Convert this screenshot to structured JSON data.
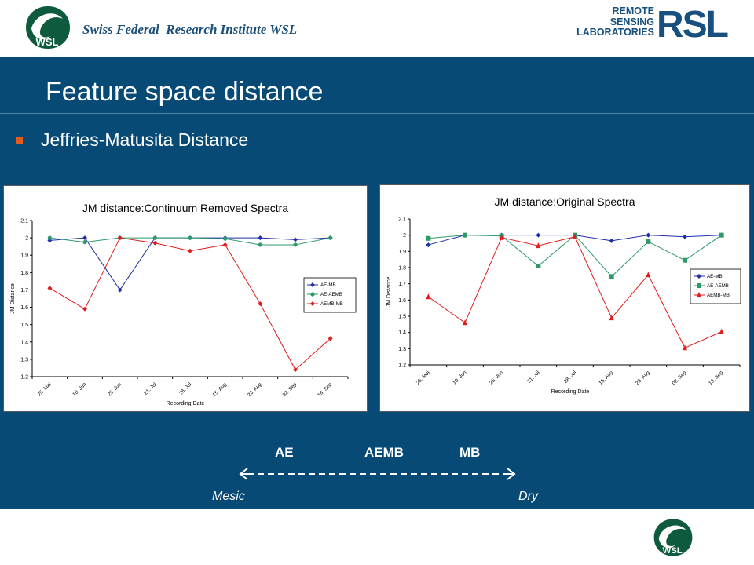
{
  "header": {
    "institute": "Swiss Federal  Research Institute WSL",
    "wsl_logo_text": "WSL",
    "rsl_words": [
      "REMOTE",
      "SENSING",
      "LABORATORIES"
    ],
    "rsl_big": "RSL"
  },
  "slide": {
    "title": "Feature space distance",
    "bullet": "Jeffries-Matusita Distance"
  },
  "scale": {
    "labels": [
      "AE",
      "AEMB",
      "MB"
    ],
    "left_end": "Mesic",
    "right_end": "Dry"
  },
  "colors": {
    "band": "#064a75",
    "bullet": "#e25a1c",
    "series_blue": "#1f2fa8",
    "series_green": "#2e9a6a",
    "series_red": "#e01c1c"
  },
  "chart_data": [
    {
      "type": "line",
      "title": "JM distance:Continuum Removed Spectra",
      "xlabel": "Recording Date",
      "ylabel": "JM Distance",
      "categories": [
        "25. Mai",
        "10. Jun",
        "25. Jun",
        "21. Jul",
        "28. Jul",
        "15. Aug",
        "23. Aug",
        "02. Sep",
        "18. Sep"
      ],
      "yticks": [
        "1.2",
        "1.3",
        "1.4",
        "1.5",
        "1.6",
        "1.7",
        "1.8",
        "1.9",
        "2",
        "2.1"
      ],
      "ylim": [
        1.2,
        2.1
      ],
      "grid": false,
      "legend": "right",
      "series": [
        {
          "name": "AE-MB",
          "marker": "diamond",
          "values": [
            1.985,
            2.0,
            1.7,
            2.0,
            2.0,
            2.0,
            2.0,
            1.99,
            2.0
          ]
        },
        {
          "name": "AE-AEMB",
          "marker": "circle",
          "values": [
            2.0,
            1.975,
            2.0,
            2.0,
            2.0,
            1.995,
            1.96,
            1.96,
            2.0
          ]
        },
        {
          "name": "AEMB-MB",
          "marker": "diamond",
          "values": [
            1.71,
            1.59,
            2.0,
            1.97,
            1.925,
            1.96,
            1.62,
            1.24,
            1.42
          ]
        }
      ]
    },
    {
      "type": "line",
      "title": "JM distance:Original Spectra",
      "xlabel": "Recording Date",
      "ylabel": "JM Distance",
      "categories": [
        "25. Mai",
        "10. Jun",
        "25. Jun",
        "21. Jul",
        "28. Jul",
        "15. Aug",
        "23. Aug",
        "02. Sep",
        "18. Sep"
      ],
      "yticks": [
        "1.2",
        "1.3",
        "1.4",
        "1.5",
        "1.6",
        "1.7",
        "1.8",
        "1.9",
        "2",
        "2.1"
      ],
      "ylim": [
        1.2,
        2.1
      ],
      "grid": false,
      "legend": "right",
      "series": [
        {
          "name": "AE-MB",
          "marker": "diamond",
          "values": [
            1.94,
            2.0,
            2.0,
            2.0,
            2.0,
            1.965,
            2.0,
            1.99,
            2.0
          ]
        },
        {
          "name": "AE-AEMB",
          "marker": "square",
          "values": [
            1.98,
            2.0,
            1.995,
            1.81,
            2.0,
            1.745,
            1.96,
            1.845,
            2.0
          ]
        },
        {
          "name": "AEMB-MB",
          "marker": "triangle",
          "values": [
            1.62,
            1.46,
            1.985,
            1.935,
            1.99,
            1.49,
            1.755,
            1.305,
            1.405
          ]
        }
      ]
    }
  ]
}
